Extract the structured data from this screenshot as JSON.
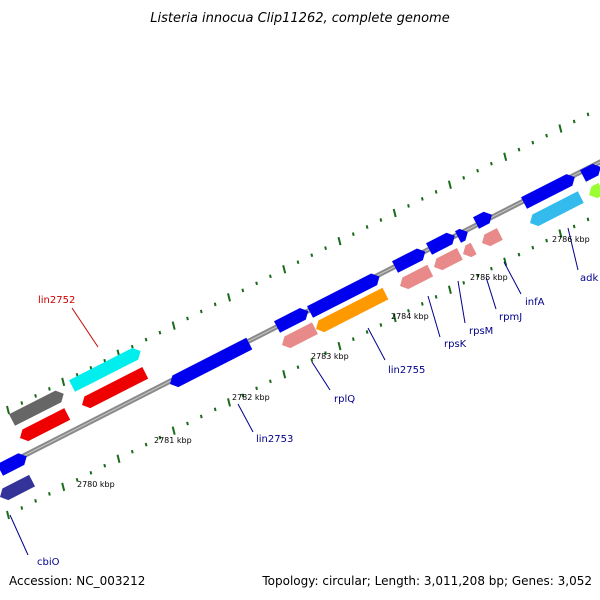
{
  "title": "Listeria innocua Clip11262, complete genome",
  "footer": {
    "accession": "Accession: NC_003212",
    "summary": "Topology: circular; Length: 3,011,208 bp; Genes: 3,052"
  },
  "colors": {
    "backbone": "#8a8a8a",
    "tick": "#1a6b1a",
    "label": "#00008b",
    "highlight_label": "#cc0000",
    "blue": "#0000ee",
    "red": "#ee0000",
    "cyan": "#00eeee",
    "gray": "#666666",
    "pink": "#e88a8a",
    "orange": "#ff9900",
    "light_blue": "#33bbee",
    "navy": "#333399",
    "green": "#99ff33"
  },
  "kbp_labels": [
    "2780 kbp",
    "2781 kbp",
    "2782 kbp",
    "2783 kbp",
    "2784 kbp",
    "2785 kbp",
    "2786 kbp"
  ],
  "gene_labels": [
    {
      "name": "cbiO",
      "color": "label"
    },
    {
      "name": "lin2752",
      "color": "highlight_label"
    },
    {
      "name": "lin2753",
      "color": "label"
    },
    {
      "name": "rplQ",
      "color": "label"
    },
    {
      "name": "lin2755",
      "color": "label"
    },
    {
      "name": "rpsK",
      "color": "label"
    },
    {
      "name": "rpsM",
      "color": "label"
    },
    {
      "name": "rpmJ",
      "color": "label"
    },
    {
      "name": "infA",
      "color": "label"
    },
    {
      "name": "adk",
      "color": "label"
    }
  ],
  "features": [
    {
      "strand": "+",
      "color": "blue"
    },
    {
      "strand": "-",
      "color": "navy"
    },
    {
      "strand": "+",
      "color": "gray"
    },
    {
      "strand": "-",
      "color": "red"
    },
    {
      "strand": "+",
      "color": "cyan"
    },
    {
      "strand": "-",
      "color": "red"
    },
    {
      "strand": "-",
      "color": "blue"
    },
    {
      "strand": "+",
      "color": "blue"
    },
    {
      "strand": "-",
      "color": "pink"
    },
    {
      "strand": "+",
      "color": "blue"
    },
    {
      "strand": "-",
      "color": "orange"
    },
    {
      "strand": "+",
      "color": "blue"
    },
    {
      "strand": "-",
      "color": "pink"
    },
    {
      "strand": "+",
      "color": "blue"
    },
    {
      "strand": "-",
      "color": "pink"
    },
    {
      "strand": "+",
      "color": "blue"
    },
    {
      "strand": "-",
      "color": "pink"
    },
    {
      "strand": "+",
      "color": "blue"
    },
    {
      "strand": "-",
      "color": "pink"
    },
    {
      "strand": "+",
      "color": "blue"
    },
    {
      "strand": "-",
      "color": "light_blue"
    },
    {
      "strand": "+",
      "color": "blue"
    },
    {
      "strand": "-",
      "color": "green"
    }
  ]
}
